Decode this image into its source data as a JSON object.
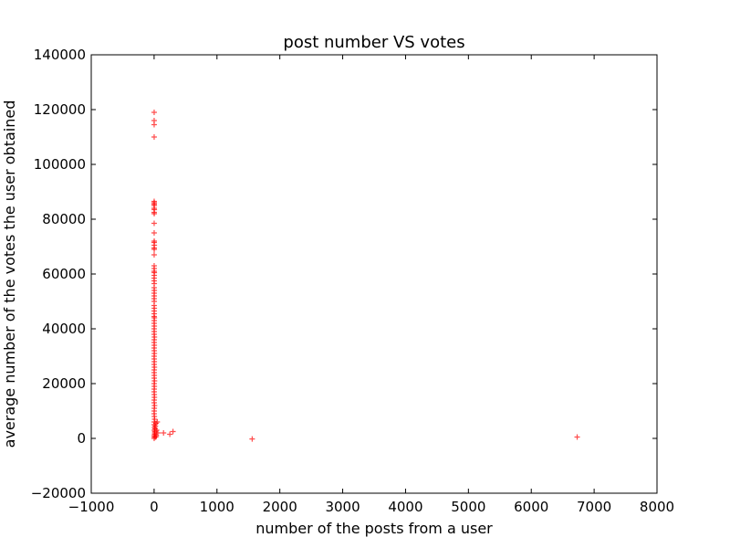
{
  "chart_data": {
    "type": "scatter",
    "title": "post number VS votes",
    "xlabel": "number of the posts from a user",
    "ylabel": "average number of the votes the user obtained",
    "xlim": [
      -1000,
      8000
    ],
    "ylim": [
      -20000,
      140000
    ],
    "xticks": [
      -1000,
      0,
      1000,
      2000,
      3000,
      4000,
      5000,
      6000,
      7000,
      8000
    ],
    "yticks": [
      -20000,
      0,
      20000,
      40000,
      60000,
      80000,
      100000,
      120000,
      140000
    ],
    "xtick_labels": [
      "−1000",
      "0",
      "1000",
      "2000",
      "3000",
      "4000",
      "5000",
      "6000",
      "7000",
      "8000"
    ],
    "ytick_labels": [
      "−20000",
      "0",
      "20000",
      "40000",
      "60000",
      "80000",
      "100000",
      "120000",
      "140000"
    ],
    "marker": "+",
    "marker_color": "#ff0000",
    "grid": false,
    "legend": "none",
    "series": [
      {
        "points": [
          [
            1,
            119000
          ],
          [
            1,
            116000
          ],
          [
            1,
            114500
          ],
          [
            1,
            110000
          ],
          [
            1,
            86500
          ],
          [
            2,
            86000
          ],
          [
            1,
            85500
          ],
          [
            2,
            85000
          ],
          [
            1,
            84000
          ],
          [
            3,
            83500
          ],
          [
            1,
            82500
          ],
          [
            2,
            82000
          ],
          [
            1,
            78500
          ],
          [
            1,
            75000
          ],
          [
            2,
            72000
          ],
          [
            1,
            71500
          ],
          [
            3,
            70500
          ],
          [
            1,
            69500
          ],
          [
            2,
            69000
          ],
          [
            1,
            67000
          ],
          [
            1,
            63000
          ],
          [
            2,
            62000
          ],
          [
            1,
            61000
          ],
          [
            3,
            60500
          ],
          [
            2,
            59500
          ],
          [
            1,
            58500
          ],
          [
            1,
            57500
          ],
          [
            2,
            56500
          ],
          [
            1,
            55000
          ],
          [
            3,
            54000
          ],
          [
            1,
            53000
          ],
          [
            2,
            52000
          ],
          [
            1,
            51000
          ],
          [
            2,
            50000
          ],
          [
            1,
            48500
          ],
          [
            3,
            47500
          ],
          [
            1,
            46500
          ],
          [
            2,
            45500
          ],
          [
            1,
            44500
          ],
          [
            4,
            44000
          ],
          [
            2,
            43000
          ],
          [
            1,
            42000
          ],
          [
            3,
            41000
          ],
          [
            1,
            40000
          ],
          [
            2,
            39000
          ],
          [
            1,
            38000
          ],
          [
            5,
            37000
          ],
          [
            2,
            36000
          ],
          [
            1,
            35000
          ],
          [
            3,
            34000
          ],
          [
            1,
            33000
          ],
          [
            2,
            32000
          ],
          [
            4,
            31000
          ],
          [
            1,
            30000
          ],
          [
            2,
            29000
          ],
          [
            3,
            28000
          ],
          [
            1,
            27000
          ],
          [
            5,
            26000
          ],
          [
            2,
            25000
          ],
          [
            1,
            24000
          ],
          [
            3,
            23000
          ],
          [
            2,
            22000
          ],
          [
            6,
            21000
          ],
          [
            1,
            20000
          ],
          [
            4,
            19000
          ],
          [
            2,
            18000
          ],
          [
            1,
            17000
          ],
          [
            3,
            16000
          ],
          [
            5,
            15000
          ],
          [
            2,
            14000
          ],
          [
            1,
            13000
          ],
          [
            7,
            12000
          ],
          [
            3,
            11000
          ],
          [
            2,
            10000
          ],
          [
            1,
            9000
          ],
          [
            4,
            8000
          ],
          [
            8,
            7000
          ],
          [
            2,
            6000
          ],
          [
            1,
            5000
          ],
          [
            6,
            4000
          ],
          [
            3,
            3000
          ],
          [
            10,
            2000
          ],
          [
            2,
            1000
          ],
          [
            1,
            0
          ],
          [
            5,
            500
          ],
          [
            9,
            1500
          ],
          [
            12,
            2500
          ],
          [
            15,
            3500
          ],
          [
            20,
            4500
          ],
          [
            30,
            5500
          ],
          [
            50,
            6000
          ],
          [
            40,
            3000
          ],
          [
            60,
            2000
          ],
          [
            35,
            1000
          ],
          [
            25,
            500
          ],
          [
            150,
            2000
          ],
          [
            250,
            1500
          ],
          [
            300,
            2500
          ],
          [
            1560,
            -200
          ],
          [
            6730,
            500
          ]
        ]
      }
    ]
  }
}
